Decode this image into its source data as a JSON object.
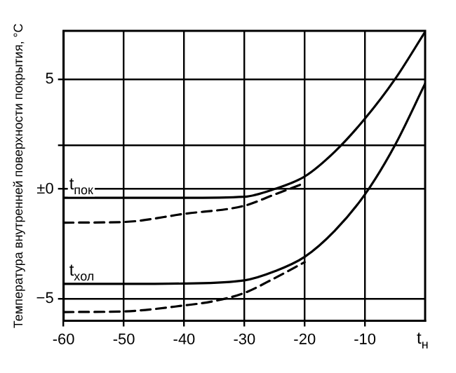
{
  "chart_data": {
    "type": "line",
    "ylabel": "Температура внутренней поверхности покрытия, °С",
    "xlabel": "t$_{н}$",
    "xlim": [
      -60,
      0
    ],
    "xticks": [
      -60,
      -50,
      -40,
      -30,
      -20,
      -10
    ],
    "ylim": [
      -6,
      7.2
    ],
    "yticks": [
      {
        "value": -5,
        "label": "−5"
      },
      {
        "value": 0,
        "label": "±0"
      },
      {
        "value": 2,
        "label": null
      },
      5
    ],
    "grid": true,
    "legend": false,
    "marker": "none",
    "series": [
      {
        "name": "t$_{пок}$",
        "color": "#000000",
        "line_style": "solid",
        "x": [
          -60,
          -50,
          -40,
          -30,
          -25,
          -20,
          -15,
          -10,
          -5,
          0
        ],
        "values": [
          -0.4,
          -0.4,
          -0.4,
          -0.35,
          0.0,
          0.57,
          1.7,
          3.2,
          5.0,
          7.16
        ]
      },
      {
        "color": "#000000",
        "line_style": "dashed",
        "x": [
          -60,
          -50,
          -40,
          -30,
          -25,
          -20
        ],
        "values": [
          -1.53,
          -1.5,
          -1.13,
          -0.76,
          -0.25,
          0.27
        ]
      },
      {
        "name": "t$_{хол}$",
        "color": "#000000",
        "line_style": "solid",
        "x": [
          -60,
          -50,
          -40,
          -30,
          -25,
          -20,
          -15,
          -10,
          -5,
          0
        ],
        "values": [
          -4.32,
          -4.32,
          -4.3,
          -4.16,
          -3.75,
          -3.09,
          -1.9,
          -0.25,
          2.0,
          4.8
        ]
      },
      {
        "color": "#000000",
        "line_style": "dashed",
        "x": [
          -60,
          -50,
          -40,
          -35,
          -30,
          -25,
          -20
        ],
        "values": [
          -5.6,
          -5.57,
          -5.3,
          -5.1,
          -4.73,
          -4.06,
          -3.33
        ]
      }
    ]
  }
}
